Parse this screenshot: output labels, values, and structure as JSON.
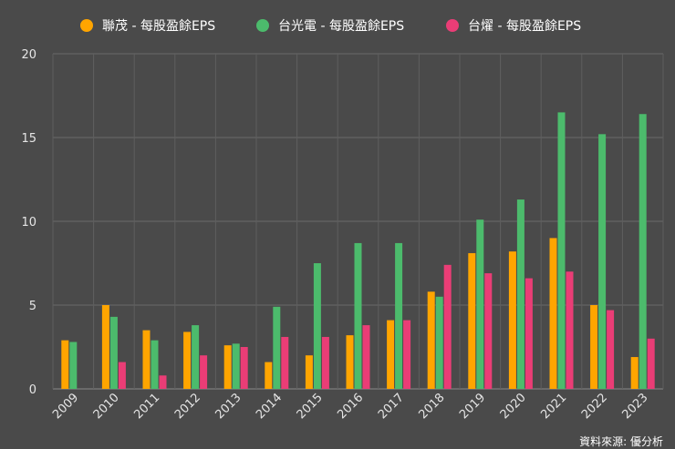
{
  "chart_data": {
    "type": "bar",
    "categories": [
      "2009",
      "2010",
      "2011",
      "2012",
      "2013",
      "2014",
      "2015",
      "2016",
      "2017",
      "2018",
      "2019",
      "2020",
      "2021",
      "2022",
      "2023"
    ],
    "series": [
      {
        "name": "聯茂 - 每股盈餘EPS",
        "color": "#ffa500",
        "values": [
          2.9,
          5.0,
          3.5,
          3.4,
          2.6,
          1.6,
          2.0,
          3.2,
          4.1,
          5.8,
          8.1,
          8.2,
          9.0,
          5.0,
          1.9
        ]
      },
      {
        "name": "台光電 - 每股盈餘EPS",
        "color": "#4cbb6c",
        "values": [
          2.8,
          4.3,
          2.9,
          3.8,
          2.7,
          4.9,
          7.5,
          8.7,
          8.7,
          5.5,
          10.1,
          11.3,
          16.5,
          15.2,
          16.4
        ]
      },
      {
        "name": "台燿 - 每股盈餘EPS",
        "color": "#ea3d76",
        "values": [
          0.0,
          1.6,
          0.8,
          2.0,
          2.5,
          3.1,
          3.1,
          3.8,
          4.1,
          7.4,
          6.9,
          6.6,
          7.0,
          4.7,
          3.0
        ]
      }
    ],
    "ylim": [
      0,
      20
    ],
    "yticks": [
      0,
      5,
      10,
      15,
      20
    ],
    "legend_position": "top",
    "grid": true,
    "source": "資料來源: 優分析"
  }
}
